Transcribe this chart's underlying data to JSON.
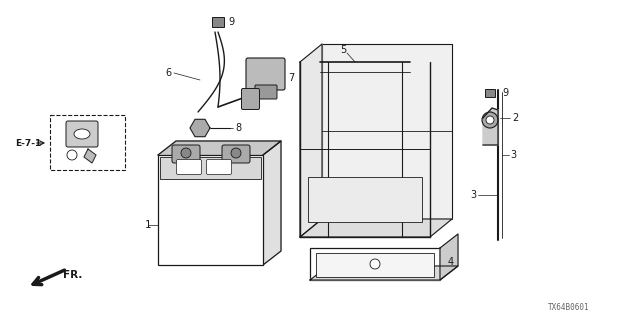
{
  "bg_color": "#ffffff",
  "line_color": "#1a1a1a",
  "fig_width": 6.4,
  "fig_height": 3.2,
  "dpi": 100,
  "watermark": "TX64B0601"
}
